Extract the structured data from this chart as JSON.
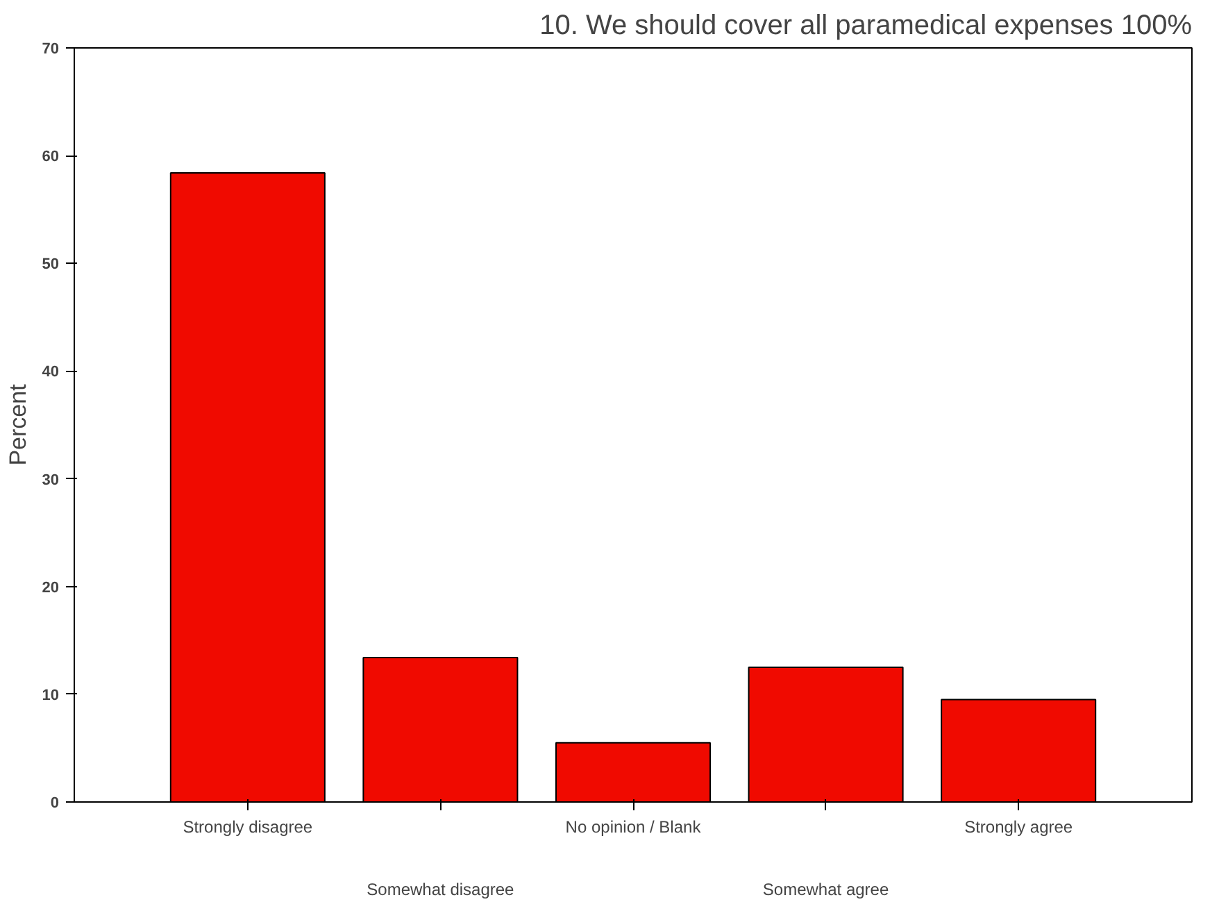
{
  "chart_data": {
    "type": "bar",
    "title": "10. We should cover all paramedical expenses 100%",
    "ylabel": "Percent",
    "categories": [
      "Strongly disagree",
      "Somewhat disagree",
      "No opinion / Blank",
      "Somewhat agree",
      "Strongly agree"
    ],
    "values": [
      58.4,
      13.4,
      5.5,
      12.5,
      9.5
    ],
    "color": "#f00a00",
    "ylim": [
      0,
      70
    ],
    "yticks": [
      0,
      10,
      20,
      30,
      40,
      50,
      60,
      70
    ],
    "grid": false
  }
}
